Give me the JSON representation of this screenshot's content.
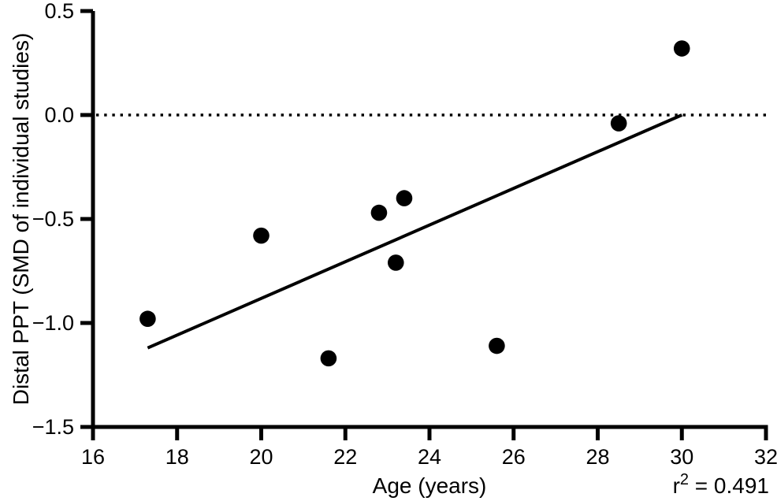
{
  "figure": {
    "background": "#ffffff",
    "ink": "#000000"
  },
  "chart_data": {
    "type": "scatter",
    "title": "",
    "xlabel": "Age (years)",
    "ylabel": "Distal PPT (SMD of individual studies)",
    "xlim": [
      16,
      32
    ],
    "ylim": [
      -1.5,
      0.5
    ],
    "grid": false,
    "legend": null,
    "xticks": {
      "values": [
        16,
        18,
        20,
        22,
        24,
        26,
        28,
        30,
        32
      ],
      "labels": [
        "16",
        "18",
        "20",
        "22",
        "24",
        "26",
        "28",
        "30",
        "32"
      ]
    },
    "yticks": {
      "values": [
        0.5,
        0.0,
        -0.5,
        -1.0,
        -1.5
      ],
      "labels": [
        "0.5",
        "0.0",
        "−0.5",
        "−1.0",
        "−1.5"
      ]
    },
    "series": [
      {
        "marker": "filled-circle",
        "color": "#000000",
        "points": [
          [
            17.3,
            -0.98
          ],
          [
            20.0,
            -0.58
          ],
          [
            21.6,
            -1.17
          ],
          [
            22.8,
            -0.47
          ],
          [
            23.2,
            -0.71
          ],
          [
            23.4,
            -0.4
          ],
          [
            25.6,
            -1.11
          ],
          [
            28.5,
            -0.04
          ],
          [
            30.0,
            0.32
          ]
        ]
      }
    ],
    "regression_line": {
      "x1": 17.3,
      "y1": -1.12,
      "x2": 30.0,
      "y2": 0.0,
      "style": "solid",
      "color": "#000000"
    },
    "reference_line": {
      "y": 0.0,
      "style": "dotted",
      "color": "#000000"
    },
    "annotation": {
      "base": "r",
      "superscript": "2",
      "rest": " = 0.491",
      "r_squared": 0.491,
      "position": "bottom-right"
    }
  }
}
